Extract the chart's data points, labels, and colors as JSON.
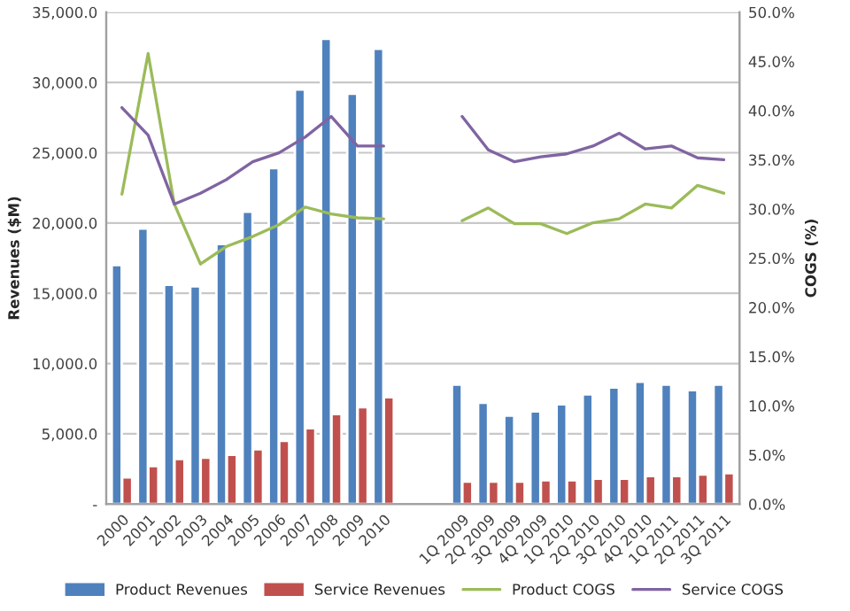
{
  "chart_data": {
    "type": "bar",
    "ylabel": "Revenues ($M)",
    "y2label": "COGS (%)",
    "categories": [
      "2000",
      "2001",
      "2002",
      "2003",
      "2004",
      "2005",
      "2006",
      "2007",
      "2008",
      "2009",
      "2010",
      null,
      null,
      "1Q 2009",
      "2Q 2009",
      "3Q 2009",
      "4Q 2009",
      "1Q 2010",
      "2Q 2010",
      "3Q 2010",
      "4Q 2010",
      "1Q 2011",
      "2Q 2011",
      "3Q 2011"
    ],
    "series": [
      {
        "name": "Product Revenues",
        "color": "#4f81bd",
        "values": [
          17000,
          19600,
          15600,
          15500,
          18500,
          20800,
          23900,
          29500,
          33100,
          29200,
          32400,
          null,
          null,
          8500,
          7200,
          6300,
          6600,
          7100,
          7800,
          8300,
          8700,
          8500,
          8100,
          8500
        ]
      },
      {
        "name": "Service Revenues",
        "color": "#c0504d",
        "values": [
          1900,
          2700,
          3200,
          3300,
          3500,
          3900,
          4500,
          5400,
          6400,
          6900,
          7600,
          null,
          null,
          1600,
          1600,
          1600,
          1700,
          1700,
          1800,
          1800,
          2000,
          2000,
          2100,
          2200
        ]
      },
      {
        "name": "Product COGS",
        "type": "line",
        "axis": "y2",
        "color": "#9bbb59",
        "values": [
          31.5,
          45.8,
          30.5,
          24.4,
          26.2,
          27.2,
          28.4,
          30.2,
          29.5,
          29.1,
          29.0,
          null,
          null,
          28.8,
          30.1,
          28.5,
          28.5,
          27.5,
          28.6,
          29.0,
          30.5,
          30.1,
          32.4,
          31.6
        ]
      },
      {
        "name": "Service COGS",
        "type": "line",
        "axis": "y2",
        "color": "#8064a2",
        "values": [
          40.3,
          37.5,
          30.5,
          31.6,
          33.0,
          34.8,
          35.7,
          37.3,
          39.4,
          36.4,
          36.4,
          null,
          null,
          39.4,
          36.0,
          34.8,
          35.3,
          35.6,
          36.4,
          37.7,
          36.1,
          36.4,
          35.2,
          35.0
        ]
      }
    ],
    "ylim": [
      0,
      35000
    ],
    "yticks": [
      {
        "value": 0,
        "label": "-"
      },
      {
        "value": 5000,
        "label": "5,000.0"
      },
      {
        "value": 10000,
        "label": "10,000.0"
      },
      {
        "value": 15000,
        "label": "15,000.0"
      },
      {
        "value": 20000,
        "label": "20,000.0"
      },
      {
        "value": 25000,
        "label": "25,000.0"
      },
      {
        "value": 30000,
        "label": "30,000.0"
      },
      {
        "value": 35000,
        "label": "35,000.0"
      }
    ],
    "y2lim": [
      0,
      50
    ],
    "y2ticks": [
      {
        "value": 0,
        "label": "0.0%"
      },
      {
        "value": 5,
        "label": "5.0%"
      },
      {
        "value": 10,
        "label": "10.0%"
      },
      {
        "value": 15,
        "label": "15.0%"
      },
      {
        "value": 20,
        "label": "20.0%"
      },
      {
        "value": 25,
        "label": "25.0%"
      },
      {
        "value": 30,
        "label": "30.0%"
      },
      {
        "value": 35,
        "label": "35.0%"
      },
      {
        "value": 40,
        "label": "40.0%"
      },
      {
        "value": 45,
        "label": "45.0%"
      },
      {
        "value": 50,
        "label": "50.0%"
      }
    ],
    "grid": "y",
    "legend": "bottom"
  }
}
